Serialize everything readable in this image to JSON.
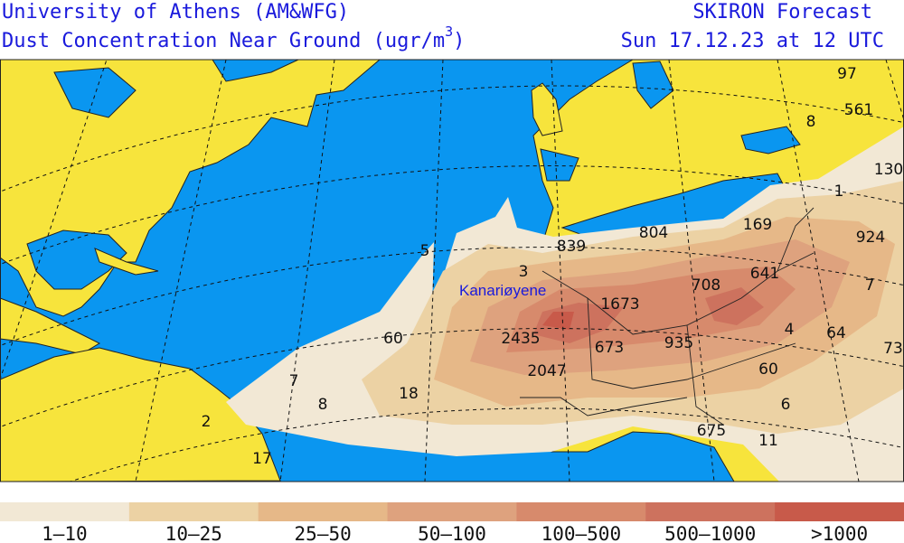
{
  "header": {
    "left_title": "University of Athens (AM&WFG)",
    "left_subtitle": "Dust Concentration Near Ground (ugr/m",
    "unit_exponent": "3",
    "unit_close": ")",
    "right_title": "SKIRON Forecast",
    "right_subtitle": "Sun 17.12.23 at 12 UTC"
  },
  "map": {
    "place_label": "Kanariøyene",
    "labels": [
      "97",
      "561",
      "8",
      "130",
      "1",
      "169",
      "924",
      "804",
      "839",
      "3",
      "5",
      "641",
      "7",
      "708",
      "1673",
      "2435",
      "60",
      "673",
      "935",
      "4",
      "64",
      "73",
      "60",
      "2047",
      "18",
      "7",
      "8",
      "2",
      "6",
      "675",
      "11",
      "17"
    ]
  },
  "legend": {
    "labels": [
      "1–10",
      "10–25",
      "25–50",
      "50–100",
      "100–500",
      "500–1000",
      ">1000"
    ],
    "colors": [
      "#f2e8d5",
      "#ecd2a4",
      "#e6b888",
      "#dea27e",
      "#d78a6c",
      "#cd725e",
      "#c85a4a"
    ]
  }
}
